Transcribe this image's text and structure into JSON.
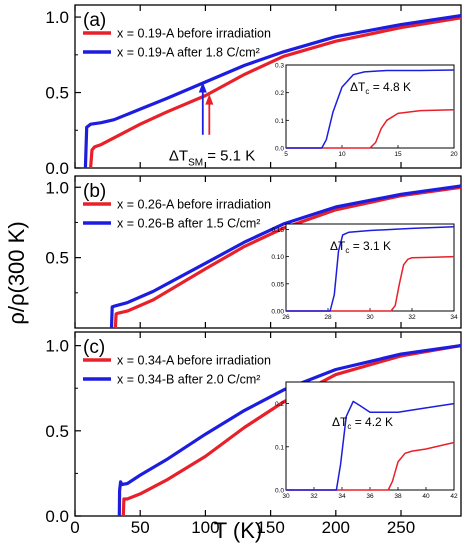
{
  "figure": {
    "ylabel": "ρ/ρ(300 K)",
    "xlabel": "T (K)",
    "xticks": [
      "0",
      "50",
      "100",
      "150",
      "200",
      "250"
    ],
    "colors": {
      "red": "#e8202a",
      "blue": "#1d1de0"
    }
  },
  "chart_data": [
    {
      "type": "line",
      "panel_label": "(a)",
      "xlim": [
        0,
        296
      ],
      "ylim": [
        0,
        1.08
      ],
      "yticks": [
        "0.0",
        "0.5",
        "1.0"
      ],
      "series": [
        {
          "name": "x = 0.19-A before irradiation",
          "color": "#e8202a",
          "x": [
            12,
            13,
            15,
            20,
            30,
            50,
            70,
            100,
            130,
            160,
            200,
            250,
            296
          ],
          "y": [
            0,
            0.12,
            0.14,
            0.155,
            0.2,
            0.29,
            0.37,
            0.48,
            0.62,
            0.74,
            0.84,
            0.93,
            0.995
          ]
        },
        {
          "name": "x = 0.19-A after 1.8 C/cm²",
          "color": "#1d1de0",
          "x": [
            8,
            9,
            12,
            20,
            30,
            50,
            70,
            100,
            130,
            160,
            200,
            250,
            296
          ],
          "y": [
            0,
            0.27,
            0.29,
            0.3,
            0.32,
            0.39,
            0.46,
            0.57,
            0.68,
            0.77,
            0.87,
            0.95,
            1.01
          ]
        }
      ],
      "annotation": {
        "text": "ΔT",
        "sub": "SM",
        "value": " = 5.1 K"
      },
      "inset": {
        "xlim": [
          5,
          20
        ],
        "ylim": [
          0,
          0.3
        ],
        "xticks": [
          "5",
          "10",
          "15",
          "20"
        ],
        "yticks": [
          "0.0",
          "0.1",
          "0.2",
          "0.3"
        ],
        "label": {
          "text": "ΔT",
          "sub": "c",
          "value": " = 4.8 K"
        },
        "series": [
          {
            "color": "#e8202a",
            "x": [
              5,
              12.5,
              13,
              13.5,
              14,
              15,
              17,
              20
            ],
            "y": [
              0,
              0,
              0.02,
              0.07,
              0.1,
              0.125,
              0.135,
              0.138
            ]
          },
          {
            "color": "#1d1de0",
            "x": [
              5,
              8.2,
              8.6,
              9.2,
              10,
              11,
              12,
              14,
              17,
              20
            ],
            "y": [
              0,
              0,
              0.03,
              0.13,
              0.22,
              0.265,
              0.275,
              0.28,
              0.28,
              0.282
            ]
          }
        ]
      }
    },
    {
      "type": "line",
      "panel_label": "(b)",
      "xlim": [
        0,
        296
      ],
      "ylim": [
        0,
        1.08
      ],
      "yticks": [
        "0.5",
        "1.0"
      ],
      "series": [
        {
          "name": "x = 0.26-A before irradiation",
          "color": "#e8202a",
          "x": [
            31,
            31.5,
            33,
            40,
            60,
            80,
            100,
            130,
            160,
            200,
            250,
            296
          ],
          "y": [
            0,
            0.1,
            0.105,
            0.12,
            0.2,
            0.31,
            0.42,
            0.58,
            0.71,
            0.84,
            0.94,
            1.0
          ]
        },
        {
          "name": "x = 0.26-B after 1.5 C/cm²",
          "color": "#1d1de0",
          "x": [
            28,
            28.5,
            30,
            40,
            60,
            80,
            100,
            130,
            160,
            200,
            250,
            296
          ],
          "y": [
            0,
            0.15,
            0.155,
            0.18,
            0.26,
            0.36,
            0.46,
            0.61,
            0.74,
            0.86,
            0.95,
            1.01
          ]
        }
      ],
      "inset": {
        "xlim": [
          26,
          34
        ],
        "ylim": [
          0,
          0.16
        ],
        "xticks": [
          "26",
          "28",
          "30",
          "32",
          "34"
        ],
        "yticks": [
          "0.00",
          "0.05",
          "0.10",
          "0.15"
        ],
        "label": {
          "text": "ΔT",
          "sub": "c",
          "value": " = 3.1 K"
        },
        "series": [
          {
            "color": "#e8202a",
            "x": [
              26,
              31,
              31.2,
              31.4,
              31.6,
              31.8,
              32,
              33,
              34
            ],
            "y": [
              0,
              0,
              0.01,
              0.05,
              0.085,
              0.095,
              0.098,
              0.099,
              0.1
            ]
          },
          {
            "color": "#1d1de0",
            "x": [
              26,
              28.1,
              28.3,
              28.5,
              28.7,
              29,
              30,
              32,
              34
            ],
            "y": [
              0,
              0,
              0.03,
              0.11,
              0.14,
              0.145,
              0.148,
              0.152,
              0.155
            ]
          }
        ]
      }
    },
    {
      "type": "line",
      "panel_label": "(c)",
      "xlim": [
        0,
        296
      ],
      "ylim": [
        0,
        1.08
      ],
      "yticks": [
        "0.0",
        "0.5",
        "1.0"
      ],
      "series": [
        {
          "name": "x = 0.34-A before irradiation",
          "color": "#e8202a",
          "x": [
            37,
            37.5,
            40,
            50,
            70,
            100,
            130,
            160,
            200,
            250,
            296
          ],
          "y": [
            0,
            0.1,
            0.1,
            0.13,
            0.21,
            0.35,
            0.52,
            0.67,
            0.83,
            0.94,
            1.0
          ]
        },
        {
          "name": "x = 0.34-B after 2.0 C/cm²",
          "color": "#1d1de0",
          "x": [
            34,
            34.2,
            35,
            36,
            40,
            50,
            70,
            100,
            130,
            160,
            200,
            250,
            296
          ],
          "y": [
            0,
            0.15,
            0.2,
            0.185,
            0.19,
            0.24,
            0.33,
            0.48,
            0.62,
            0.74,
            0.86,
            0.95,
            1.0
          ]
        }
      ],
      "inset": {
        "xlim": [
          30,
          42
        ],
        "ylim": [
          0,
          0.25
        ],
        "xticks": [
          "30",
          "32",
          "34",
          "36",
          "38",
          "40",
          "42"
        ],
        "yticks": [
          "0.0",
          "0.1",
          "0.2"
        ],
        "label": {
          "text": "ΔT",
          "sub": "c",
          "value": " = 4.2 K"
        },
        "series": [
          {
            "color": "#e8202a",
            "x": [
              30,
              37.3,
              37.6,
              38,
              38.5,
              39,
              40,
              42
            ],
            "y": [
              0,
              0,
              0.02,
              0.065,
              0.085,
              0.09,
              0.095,
              0.11
            ]
          },
          {
            "color": "#1d1de0",
            "x": [
              30,
              33.6,
              33.9,
              34.3,
              34.8,
              35.3,
              36,
              38,
              40,
              42
            ],
            "y": [
              0,
              0,
              0.06,
              0.17,
              0.205,
              0.195,
              0.18,
              0.18,
              0.19,
              0.2
            ]
          }
        ]
      }
    }
  ]
}
